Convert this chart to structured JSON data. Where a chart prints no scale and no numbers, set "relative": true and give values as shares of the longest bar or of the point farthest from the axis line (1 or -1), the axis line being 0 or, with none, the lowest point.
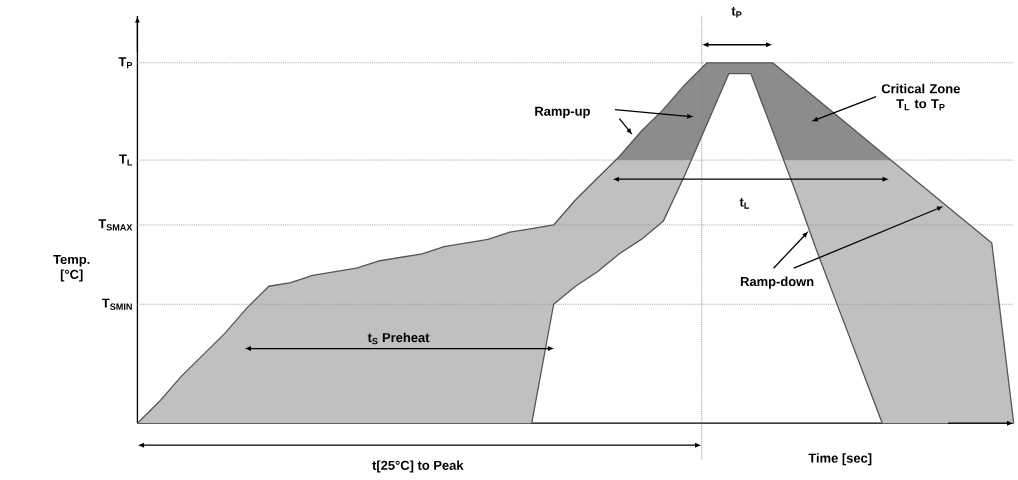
{
  "chart_data": {
    "type": "line",
    "xlabel": "Time [sec]",
    "ylabel": "Temp. [°C]",
    "categories": [
      null,
      null,
      null,
      null,
      null,
      null,
      null,
      null,
      null,
      null,
      null,
      null,
      null,
      null,
      null,
      null,
      null,
      null,
      null,
      null,
      null,
      null,
      null,
      null,
      null,
      null,
      null,
      null,
      null,
      null,
      null,
      null,
      null,
      null,
      null,
      null,
      null,
      null,
      null,
      null,
      null
    ],
    "relative": true,
    "series": [
      {
        "color": "#555555",
        "values": [
          0,
          0.06,
          0.13,
          0.19,
          0.25,
          0.32,
          0.38,
          0.39,
          0.41,
          0.42,
          0.43,
          0.45,
          0.46,
          0.47,
          0.49,
          0.5,
          0.51,
          0.53,
          0.54,
          0.55,
          0.62,
          0.68,
          0.74,
          0.81,
          0.87,
          0.94,
          1,
          1,
          1,
          1,
          0.95,
          0.9,
          0.85,
          0.8,
          0.75,
          0.7,
          0.65,
          0.6,
          0.55,
          0.5,
          0
        ]
      },
      {
        "color": "#555555",
        "values": [
          null,
          null,
          null,
          null,
          null,
          null,
          null,
          null,
          null,
          null,
          null,
          null,
          null,
          null,
          null,
          null,
          null,
          null,
          0,
          0.33,
          0.38,
          0.42,
          0.47,
          0.51,
          0.56,
          0.69,
          0.83,
          0.97,
          0.97,
          0.81,
          0.65,
          0.48,
          0.32,
          0.16,
          0,
          null,
          null,
          null,
          null,
          null,
          null
        ]
      }
    ],
    "ref_lines": [
      {
        "axis": "y",
        "value": 1,
        "label": "T$_{P}$",
        "line_style": "dotted",
        "color": "#999999"
      },
      {
        "axis": "y",
        "value": 0.73,
        "label": "T$_{L}$",
        "line_style": "dotted",
        "color": "#999999"
      },
      {
        "axis": "y",
        "value": 0.55,
        "label": "T$_{SMAX}$",
        "line_style": "dotted",
        "color": "#999999"
      },
      {
        "axis": "y",
        "value": 0.33,
        "label": "T$_{SMIN}$",
        "line_style": "dotted",
        "color": "#999999"
      }
    ],
    "bands": [
      {
        "axis": "y",
        "from": 0.73,
        "to": 1,
        "color": "#8c8c8c"
      }
    ],
    "annotations": [
      "Ramp-up",
      "Critical Zone T$_{L}$ to T$_{P}$",
      "t$_{L}$",
      "t$_{P}$",
      "Ramp-down",
      "t$_{S}$ Preheat",
      "t[25°C] to Peak"
    ],
    "marker": "none",
    "line_style": "solid"
  }
}
